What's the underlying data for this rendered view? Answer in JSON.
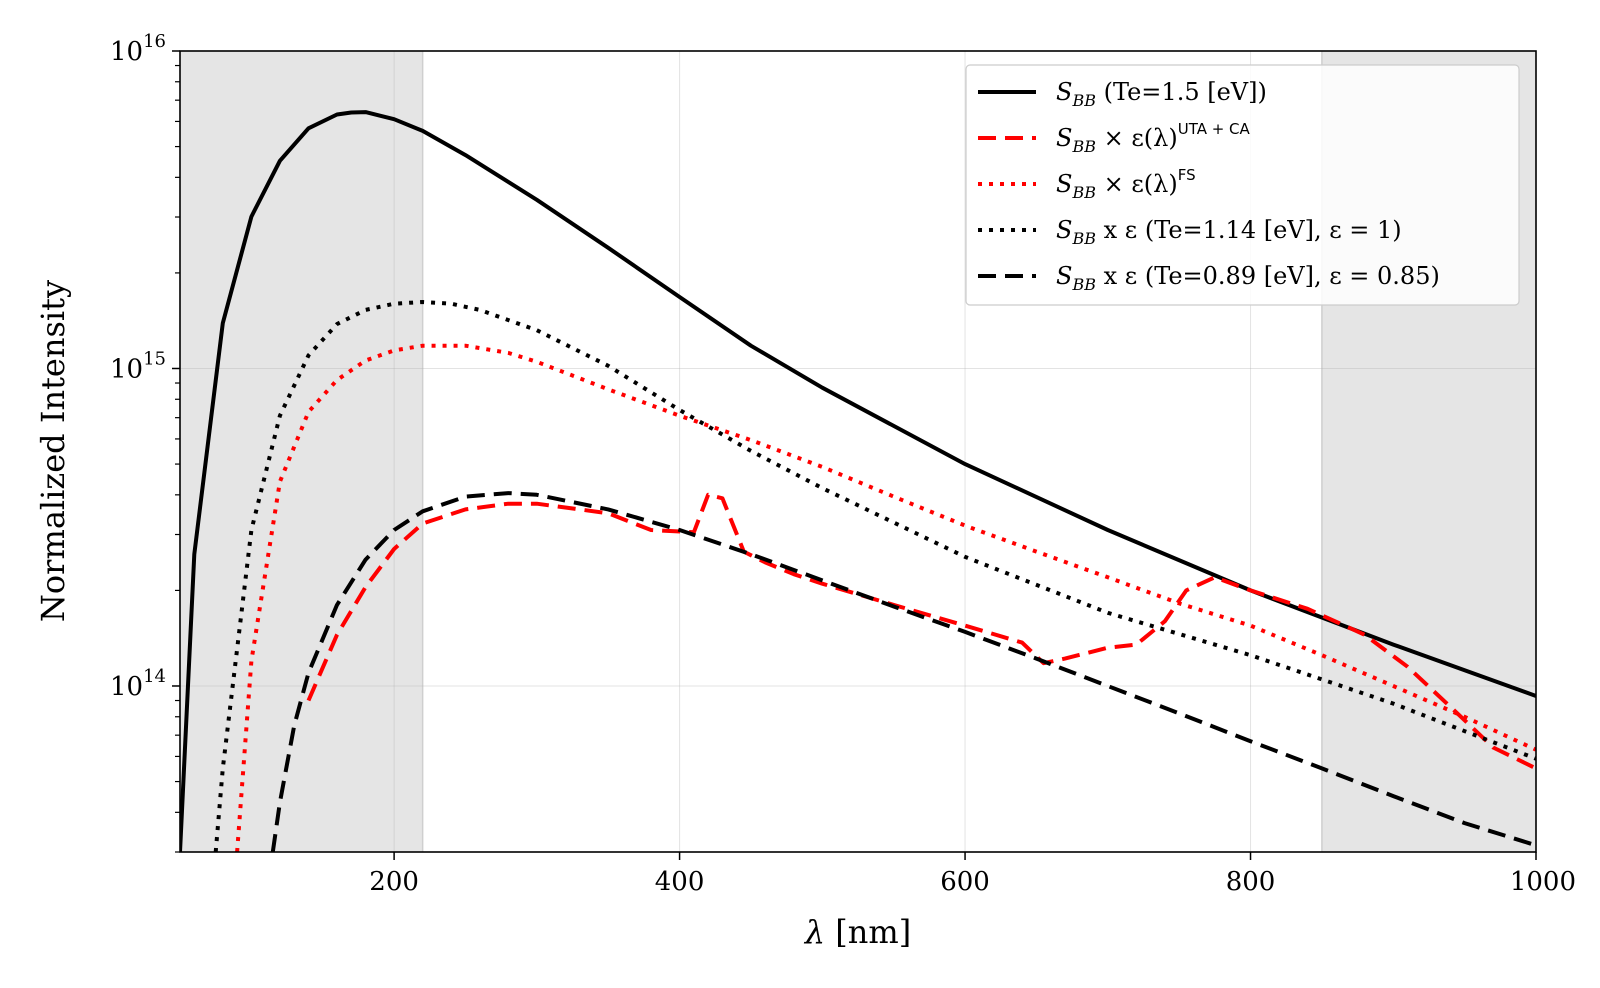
{
  "chart_data": {
    "type": "line",
    "title": "",
    "xlabel": {
      "symbol": "λ",
      "unit": " [nm]"
    },
    "ylabel": "Normalized Intensity",
    "xlim": [
      50,
      1000
    ],
    "ylim": [
      30000000000000.0,
      1e+16
    ],
    "yscale": "log",
    "grid": true,
    "legend_position": "top-right",
    "x_ticks": [
      {
        "v": 200,
        "label": "200"
      },
      {
        "v": 400,
        "label": "400"
      },
      {
        "v": 600,
        "label": "600"
      },
      {
        "v": 800,
        "label": "800"
      },
      {
        "v": 1000,
        "label": "1000"
      }
    ],
    "y_ticks": [
      {
        "v": 100000000000000.0,
        "base": "10",
        "exp": "14"
      },
      {
        "v": 1000000000000000.0,
        "base": "10",
        "exp": "15"
      },
      {
        "v": 1e+16,
        "base": "10",
        "exp": "16"
      }
    ],
    "shaded_regions": [
      {
        "x0": 50,
        "x1": 220,
        "color": "#e5e5e5"
      },
      {
        "x0": 850,
        "x1": 1000,
        "color": "#e5e5e5"
      }
    ],
    "series": [
      {
        "name": "S_BB (Te=1.5 [eV])",
        "legend": {
          "main": "S",
          "sub": "BB",
          "rest": " (Te=1.5 [eV])"
        },
        "color": "#000000",
        "style": "solid",
        "x": [
          50,
          60,
          80,
          100,
          120,
          140,
          160,
          170,
          180,
          200,
          220,
          250,
          300,
          350,
          400,
          450,
          500,
          600,
          700,
          800,
          900,
          1000
        ],
        "y": [
          30000000000000.0,
          260000000000000.0,
          1390000000000000.0,
          3010000000000000.0,
          4510000000000000.0,
          5710000000000000.0,
          6310000000000000.0,
          6400000000000000.0,
          6420000000000000.0,
          6100000000000000.0,
          5600000000000000.0,
          4700000000000000.0,
          3400000000000000.0,
          2400000000000000.0,
          1680000000000000.0,
          1180000000000000.0,
          870000000000000.0,
          500000000000000.0,
          310000000000000.0,
          200000000000000.0,
          135000000000000.0,
          93000000000000.0
        ]
      },
      {
        "name": "S_BB × ε(λ)^UTA+CA",
        "legend": {
          "main": "S",
          "sub": "BB",
          "rest": " × ε(λ)",
          "sup": "UTA + CA"
        },
        "color": "#ff0000",
        "style": "dashed",
        "x": [
          140,
          160,
          180,
          200,
          220,
          250,
          280,
          300,
          330,
          350,
          380,
          410,
          420,
          430,
          445,
          460,
          480,
          500,
          550,
          600,
          640,
          655,
          670,
          700,
          720,
          740,
          755,
          775,
          800,
          840,
          880,
          910,
          940,
          970,
          1000
        ],
        "y": [
          90000000000000.0,
          145000000000000.0,
          205000000000000.0,
          270000000000000.0,
          325000000000000.0,
          360000000000000.0,
          375000000000000.0,
          375000000000000.0,
          360000000000000.0,
          350000000000000.0,
          310000000000000.0,
          305000000000000.0,
          400000000000000.0,
          390000000000000.0,
          265000000000000.0,
          245000000000000.0,
          225000000000000.0,
          210000000000000.0,
          180000000000000.0,
          155000000000000.0,
          137000000000000.0,
          118000000000000.0,
          122000000000000.0,
          132000000000000.0,
          135000000000000.0,
          160000000000000.0,
          200000000000000.0,
          220000000000000.0,
          200000000000000.0,
          175000000000000.0,
          145000000000000.0,
          115000000000000.0,
          86000000000000.0,
          64000000000000.0,
          55000000000000.0
        ]
      },
      {
        "name": "S_BB × ε(λ)^FS",
        "legend": {
          "main": "S",
          "sub": "BB",
          "rest": " × ε(λ)",
          "sup": "FS"
        },
        "color": "#ff0000",
        "style": "dotted",
        "x": [
          90,
          100,
          120,
          140,
          160,
          180,
          200,
          220,
          250,
          280,
          300,
          350,
          400,
          450,
          500,
          550,
          600,
          650,
          700,
          750,
          800,
          850,
          900,
          950,
          1000
        ],
        "y": [
          30000000000000.0,
          120000000000000.0,
          440000000000000.0,
          730000000000000.0,
          920000000000000.0,
          1060000000000000.0,
          1140000000000000.0,
          1180000000000000.0,
          1180000000000000.0,
          1120000000000000.0,
          1050000000000000.0,
          860000000000000.0,
          710000000000000.0,
          595000000000000.0,
          490000000000000.0,
          395000000000000.0,
          320000000000000.0,
          265000000000000.0,
          220000000000000.0,
          182000000000000.0,
          155000000000000.0,
          125000000000000.0,
          100000000000000.0,
          80000000000000.0,
          63000000000000.0
        ]
      },
      {
        "name": "S_BB x ε (Te=1.14 [eV], ε = 1)",
        "legend": {
          "main": "S",
          "sub": "BB",
          "rest": " x ε  (Te=1.14 [eV], ε = 1)"
        },
        "color": "#000000",
        "style": "dotted",
        "x": [
          75,
          80,
          100,
          120,
          140,
          160,
          180,
          200,
          220,
          240,
          260,
          300,
          350,
          400,
          450,
          500,
          600,
          700,
          800,
          900,
          1000
        ],
        "y": [
          30000000000000.0,
          55000000000000.0,
          310000000000000.0,
          710000000000000.0,
          1100000000000000.0,
          1380000000000000.0,
          1530000000000000.0,
          1600000000000000.0,
          1620000000000000.0,
          1600000000000000.0,
          1530000000000000.0,
          1320000000000000.0,
          1020000000000000.0,
          740000000000000.0,
          550000000000000.0,
          420000000000000.0,
          255000000000000.0,
          170000000000000.0,
          125000000000000.0,
          88000000000000.0,
          59000000000000.0
        ]
      },
      {
        "name": "S_BB x ε (Te=0.89 [eV], ε = 0.85)",
        "legend": {
          "main": "S",
          "sub": "BB",
          "rest": " x ε  (Te=0.89 [eV], ε = 0.85)"
        },
        "color": "#000000",
        "style": "dashed",
        "x": [
          115,
          120,
          130,
          140,
          160,
          180,
          200,
          220,
          250,
          280,
          300,
          350,
          400,
          450,
          500,
          550,
          600,
          650,
          700,
          750,
          800,
          850,
          900,
          950,
          1000
        ],
        "y": [
          30000000000000.0,
          43000000000000.0,
          75000000000000.0,
          110000000000000.0,
          180000000000000.0,
          250000000000000.0,
          310000000000000.0,
          355000000000000.0,
          395000000000000.0,
          405000000000000.0,
          400000000000000.0,
          360000000000000.0,
          310000000000000.0,
          260000000000000.0,
          215000000000000.0,
          178000000000000.0,
          148000000000000.0,
          122000000000000.0,
          100000000000000.0,
          82000000000000.0,
          67000000000000.0,
          55000000000000.0,
          45000000000000.0,
          37000000000000.0,
          31500000000000.0
        ]
      }
    ]
  }
}
